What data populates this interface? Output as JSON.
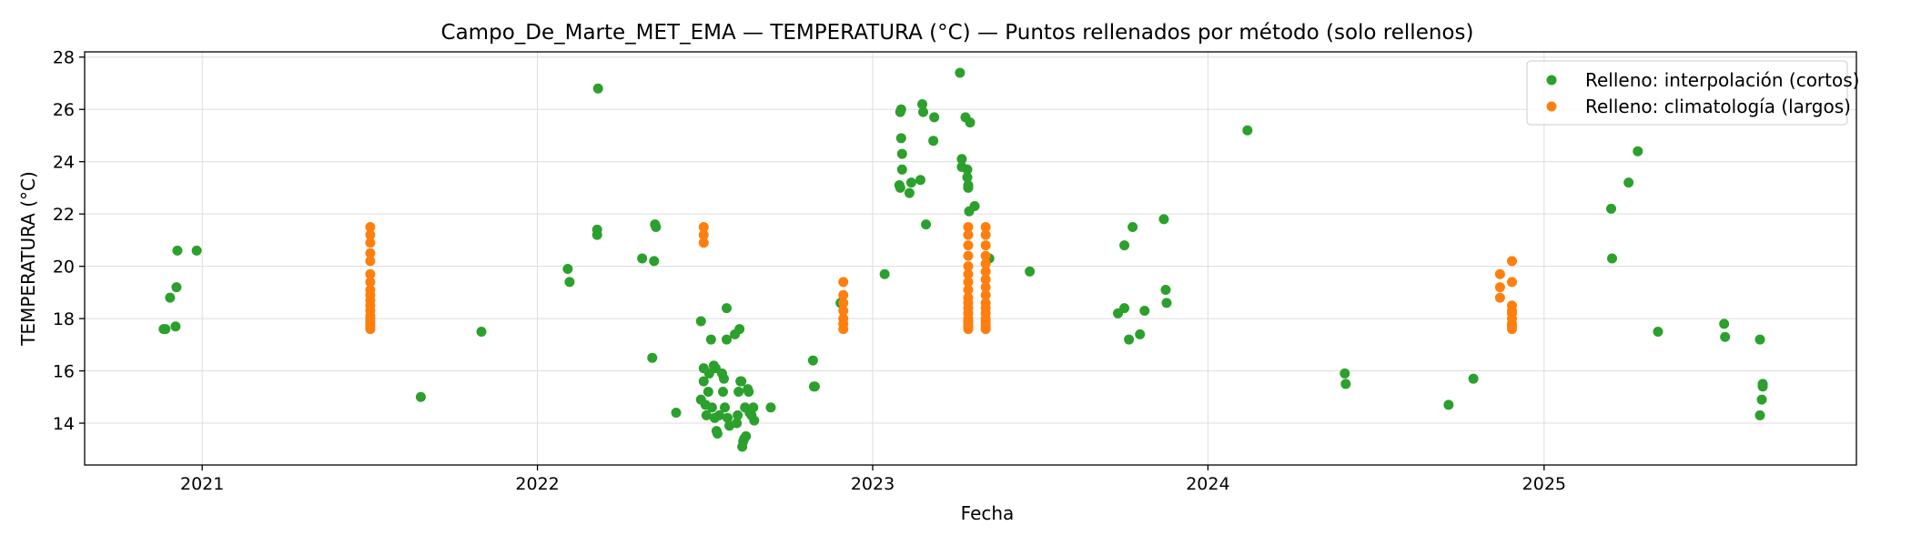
{
  "chart_data": {
    "type": "scatter",
    "title": "Campo_De_Marte_MET_EMA — TEMPERATURA (°C) — Puntos rellenados por método (solo rellenos)",
    "xlabel": "Fecha",
    "ylabel": "TEMPERATURA (°C)",
    "xlim": [
      "2020-08-26",
      "2025-12-07"
    ],
    "ylim": [
      12.4,
      28.2
    ],
    "x_ticks": [
      "2021",
      "2022",
      "2023",
      "2024",
      "2025"
    ],
    "x_tick_dates": [
      "2021-01-01",
      "2022-01-01",
      "2023-01-01",
      "2024-01-01",
      "2025-01-01"
    ],
    "y_ticks": [
      14,
      16,
      18,
      20,
      22,
      24,
      26,
      28
    ],
    "grid": true,
    "legend_position": "top-right",
    "series": [
      {
        "name": "Relleno: interpolación (cortos)",
        "color": "#2ca02c",
        "points": [
          [
            "2020-11-20",
            17.6
          ],
          [
            "2020-11-22",
            17.6
          ],
          [
            "2020-11-27",
            18.8
          ],
          [
            "2020-12-03",
            17.7
          ],
          [
            "2020-12-04",
            19.2
          ],
          [
            "2020-12-05",
            20.6
          ],
          [
            "2020-12-26",
            20.6
          ],
          [
            "2021-08-27",
            15.0
          ],
          [
            "2021-11-01",
            17.5
          ],
          [
            "2022-02-03",
            19.9
          ],
          [
            "2022-02-05",
            19.4
          ],
          [
            "2022-03-07",
            21.4
          ],
          [
            "2022-03-07",
            21.2
          ],
          [
            "2022-03-08",
            26.8
          ],
          [
            "2022-04-25",
            20.3
          ],
          [
            "2022-05-06",
            16.5
          ],
          [
            "2022-05-08",
            20.2
          ],
          [
            "2022-05-09",
            21.6
          ],
          [
            "2022-05-10",
            21.5
          ],
          [
            "2022-06-01",
            14.4
          ],
          [
            "2022-06-28",
            17.9
          ],
          [
            "2022-06-28",
            14.9
          ],
          [
            "2022-07-01",
            16.1
          ],
          [
            "2022-07-01",
            15.6
          ],
          [
            "2022-07-03",
            14.7
          ],
          [
            "2022-07-04",
            14.3
          ],
          [
            "2022-07-06",
            15.2
          ],
          [
            "2022-07-07",
            15.9
          ],
          [
            "2022-07-09",
            17.2
          ],
          [
            "2022-07-10",
            14.6
          ],
          [
            "2022-07-12",
            16.2
          ],
          [
            "2022-07-13",
            14.2
          ],
          [
            "2022-07-14",
            16.1
          ],
          [
            "2022-07-15",
            13.7
          ],
          [
            "2022-07-16",
            13.6
          ],
          [
            "2022-07-18",
            14.3
          ],
          [
            "2022-07-21",
            15.9
          ],
          [
            "2022-07-22",
            15.2
          ],
          [
            "2022-07-23",
            15.7
          ],
          [
            "2022-07-24",
            14.6
          ],
          [
            "2022-07-26",
            18.4
          ],
          [
            "2022-07-26",
            17.2
          ],
          [
            "2022-07-27",
            14.2
          ],
          [
            "2022-07-29",
            13.9
          ],
          [
            "2022-08-04",
            17.4
          ],
          [
            "2022-08-06",
            14.0
          ],
          [
            "2022-08-07",
            14.3
          ],
          [
            "2022-08-08",
            15.2
          ],
          [
            "2022-08-09",
            17.6
          ],
          [
            "2022-08-10",
            15.6
          ],
          [
            "2022-08-11",
            15.6
          ],
          [
            "2022-08-12",
            13.1
          ],
          [
            "2022-08-13",
            13.3
          ],
          [
            "2022-08-14",
            13.4
          ],
          [
            "2022-08-15",
            14.6
          ],
          [
            "2022-08-16",
            13.5
          ],
          [
            "2022-08-18",
            15.3
          ],
          [
            "2022-08-19",
            15.2
          ],
          [
            "2022-08-20",
            14.4
          ],
          [
            "2022-08-22",
            14.3
          ],
          [
            "2022-08-24",
            14.6
          ],
          [
            "2022-08-25",
            14.1
          ],
          [
            "2022-09-12",
            14.6
          ],
          [
            "2022-10-28",
            16.4
          ],
          [
            "2022-10-29",
            15.4
          ],
          [
            "2022-10-30",
            15.4
          ],
          [
            "2022-11-27",
            18.6
          ],
          [
            "2023-01-14",
            19.7
          ],
          [
            "2023-01-30",
            23.1
          ],
          [
            "2023-01-31",
            23.0
          ],
          [
            "2023-01-31",
            25.9
          ],
          [
            "2023-02-01",
            26.0
          ],
          [
            "2023-02-01",
            24.9
          ],
          [
            "2023-02-02",
            24.3
          ],
          [
            "2023-02-02",
            23.7
          ],
          [
            "2023-02-10",
            22.8
          ],
          [
            "2023-02-12",
            23.2
          ],
          [
            "2023-02-22",
            23.3
          ],
          [
            "2023-02-24",
            26.2
          ],
          [
            "2023-02-25",
            25.9
          ],
          [
            "2023-02-28",
            21.6
          ],
          [
            "2023-03-08",
            24.8
          ],
          [
            "2023-03-09",
            25.7
          ],
          [
            "2023-04-06",
            27.4
          ],
          [
            "2023-04-08",
            24.1
          ],
          [
            "2023-04-08",
            23.8
          ],
          [
            "2023-04-12",
            25.7
          ],
          [
            "2023-04-14",
            23.7
          ],
          [
            "2023-04-14",
            23.4
          ],
          [
            "2023-04-15",
            23.1
          ],
          [
            "2023-04-15",
            23.0
          ],
          [
            "2023-04-16",
            22.1
          ],
          [
            "2023-04-17",
            25.5
          ],
          [
            "2023-04-22",
            22.3
          ],
          [
            "2023-05-08",
            20.3
          ],
          [
            "2023-06-21",
            19.8
          ],
          [
            "2023-09-25",
            18.2
          ],
          [
            "2023-10-02",
            20.8
          ],
          [
            "2023-10-02",
            18.4
          ],
          [
            "2023-10-07",
            17.2
          ],
          [
            "2023-10-11",
            21.5
          ],
          [
            "2023-10-19",
            17.4
          ],
          [
            "2023-10-24",
            18.3
          ],
          [
            "2023-11-14",
            21.8
          ],
          [
            "2023-11-16",
            19.1
          ],
          [
            "2023-11-17",
            18.6
          ],
          [
            "2024-02-13",
            25.2
          ],
          [
            "2024-05-29",
            15.9
          ],
          [
            "2024-05-30",
            15.5
          ],
          [
            "2024-09-19",
            14.7
          ],
          [
            "2024-10-16",
            15.7
          ],
          [
            "2025-03-15",
            22.2
          ],
          [
            "2025-03-16",
            20.3
          ],
          [
            "2025-04-03",
            23.2
          ],
          [
            "2025-04-13",
            24.4
          ],
          [
            "2025-05-05",
            17.5
          ],
          [
            "2025-07-16",
            17.8
          ],
          [
            "2025-07-17",
            17.3
          ],
          [
            "2025-08-24",
            17.2
          ],
          [
            "2025-08-24",
            14.3
          ],
          [
            "2025-08-26",
            14.9
          ],
          [
            "2025-08-27",
            15.4
          ],
          [
            "2025-08-27",
            15.5
          ]
        ]
      },
      {
        "name": "Relleno: climatología (largos)",
        "color": "#ff7f0e",
        "columns": [
          {
            "date": "2021-07-03",
            "values": [
              17.6,
              17.7,
              17.8,
              17.9,
              18.0,
              18.1,
              18.3,
              18.5,
              18.7,
              18.9,
              19.1,
              19.4,
              19.7,
              20.2,
              20.5,
              20.9,
              21.2,
              21.5
            ]
          },
          {
            "date": "2022-07-01",
            "values": [
              20.9,
              21.2,
              21.5
            ]
          },
          {
            "date": "2022-11-30",
            "values": [
              17.6,
              17.8,
              18.0,
              18.3,
              18.6,
              18.9,
              19.4
            ]
          },
          {
            "date": "2023-04-15",
            "values": [
              17.6,
              17.7,
              17.8,
              17.9,
              18.0,
              18.2,
              18.4,
              18.6,
              18.8,
              19.1,
              19.4,
              19.7,
              20.0,
              20.4,
              20.8,
              21.2,
              21.5
            ]
          },
          {
            "date": "2023-05-04",
            "values": [
              17.6,
              17.7,
              17.8,
              17.9,
              18.0,
              18.2,
              18.4,
              18.6,
              18.9,
              19.2,
              19.5,
              19.8,
              20.1,
              20.4,
              20.8,
              21.2,
              21.5
            ]
          },
          {
            "date": "2024-11-14",
            "values": [
              18.8,
              19.2,
              19.7
            ]
          },
          {
            "date": "2024-11-27",
            "values": [
              17.6,
              17.7,
              17.8,
              18.0,
              18.2,
              18.3,
              18.5,
              19.4,
              20.2
            ]
          }
        ]
      }
    ]
  }
}
